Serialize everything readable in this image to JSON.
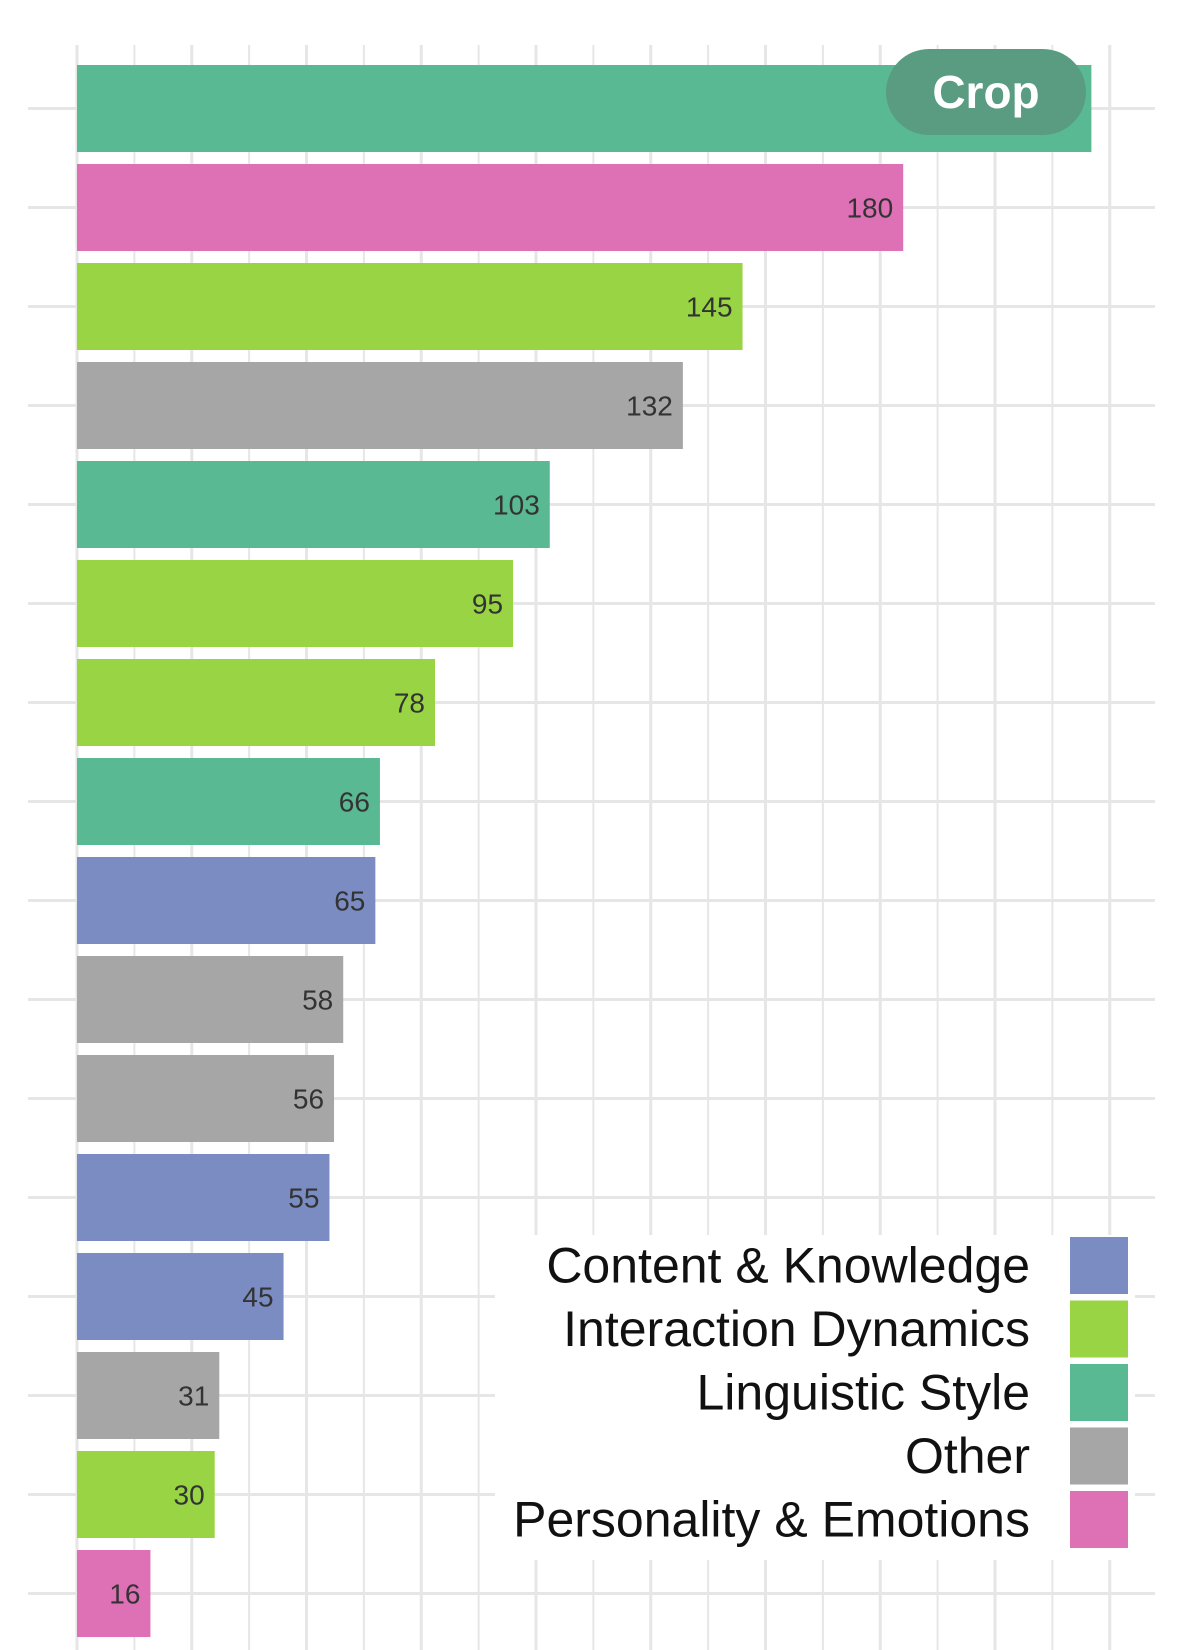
{
  "crop_button": {
    "label": "Crop"
  },
  "chart_data": {
    "type": "bar",
    "orientation": "horizontal",
    "title": "",
    "xlabel": "",
    "ylabel": "",
    "grid": true,
    "legend_position": "bottom-right",
    "xlim": [
      0,
      225
    ],
    "categories": [
      "",
      "",
      "",
      "",
      "",
      "",
      "",
      "",
      "",
      "",
      "",
      "",
      "",
      "",
      "",
      ""
    ],
    "values": [
      221,
      180,
      145,
      132,
      103,
      95,
      78,
      66,
      65,
      58,
      56,
      55,
      45,
      31,
      30,
      16
    ],
    "value_labels": [
      "",
      "180",
      "145",
      "132",
      "103",
      "95",
      "78",
      "66",
      "65",
      "58",
      "56",
      "55",
      "45",
      "31",
      "30",
      "16"
    ],
    "groups": [
      "Linguistic Style",
      "Personality & Emotions",
      "Interaction Dynamics",
      "Other",
      "Linguistic Style",
      "Interaction Dynamics",
      "Interaction Dynamics",
      "Linguistic Style",
      "Content & Knowledge",
      "Other",
      "Other",
      "Content & Knowledge",
      "Content & Knowledge",
      "Other",
      "Interaction Dynamics",
      "Personality & Emotions"
    ],
    "legend": [
      {
        "name": "Content & Knowledge",
        "color": "#7a8cc2"
      },
      {
        "name": "Interaction Dynamics",
        "color": "#98d443"
      },
      {
        "name": "Linguistic Style",
        "color": "#58b992"
      },
      {
        "name": "Other",
        "color": "#a6a6a6"
      },
      {
        "name": "Personality & Emotions",
        "color": "#de70b5"
      }
    ]
  }
}
